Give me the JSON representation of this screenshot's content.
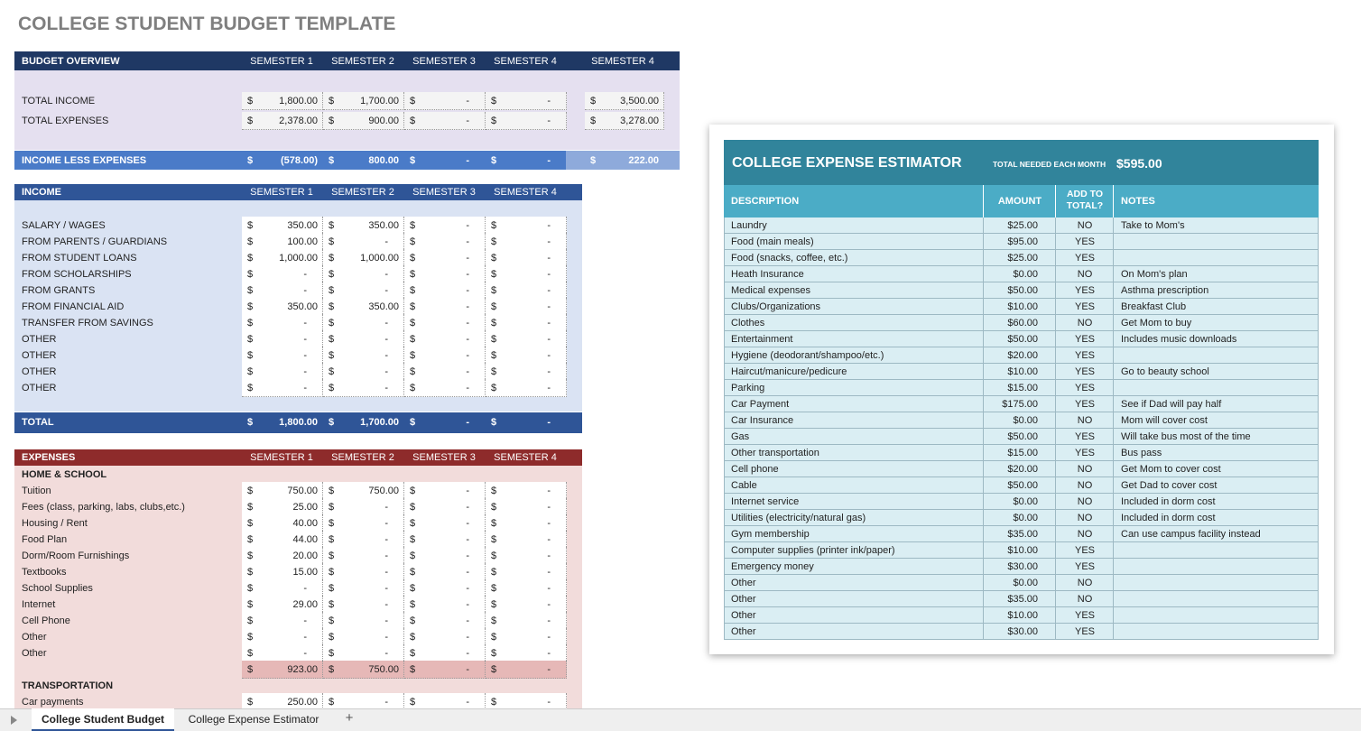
{
  "title": "COLLEGE STUDENT BUDGET TEMPLATE",
  "currency": "$",
  "overview": {
    "header": [
      "BUDGET OVERVIEW",
      "SEMESTER 1",
      "SEMESTER 2",
      "SEMESTER 3",
      "SEMESTER 4",
      "SEMESTER 4"
    ],
    "rows": [
      {
        "label": "TOTAL INCOME",
        "values": [
          "1,800.00",
          "1,700.00",
          "-",
          "-"
        ],
        "total": "3,500.00"
      },
      {
        "label": "TOTAL EXPENSES",
        "values": [
          "2,378.00",
          "900.00",
          "-",
          "-"
        ],
        "total": "3,278.00"
      }
    ],
    "net": {
      "label": "INCOME LESS EXPENSES",
      "values": [
        "(578.00)",
        "800.00",
        "-",
        "-"
      ],
      "total": "222.00"
    }
  },
  "income": {
    "header": [
      "INCOME",
      "SEMESTER 1",
      "SEMESTER 2",
      "SEMESTER 3",
      "SEMESTER 4"
    ],
    "rows": [
      {
        "label": "SALARY / WAGES",
        "values": [
          "350.00",
          "350.00",
          "-",
          "-"
        ]
      },
      {
        "label": "FROM PARENTS / GUARDIANS",
        "values": [
          "100.00",
          "-",
          "-",
          "-"
        ]
      },
      {
        "label": "FROM STUDENT LOANS",
        "values": [
          "1,000.00",
          "1,000.00",
          "-",
          "-"
        ]
      },
      {
        "label": "FROM SCHOLARSHIPS",
        "values": [
          "-",
          "-",
          "-",
          "-"
        ]
      },
      {
        "label": "FROM GRANTS",
        "values": [
          "-",
          "-",
          "-",
          "-"
        ]
      },
      {
        "label": "FROM FINANCIAL AID",
        "values": [
          "350.00",
          "350.00",
          "-",
          "-"
        ]
      },
      {
        "label": "TRANSFER FROM SAVINGS",
        "values": [
          "-",
          "-",
          "-",
          "-"
        ]
      },
      {
        "label": "OTHER",
        "values": [
          "-",
          "-",
          "-",
          "-"
        ]
      },
      {
        "label": "OTHER",
        "values": [
          "-",
          "-",
          "-",
          "-"
        ]
      },
      {
        "label": "OTHER",
        "values": [
          "-",
          "-",
          "-",
          "-"
        ]
      },
      {
        "label": "OTHER",
        "values": [
          "-",
          "-",
          "-",
          "-"
        ]
      }
    ],
    "total": {
      "label": "TOTAL",
      "values": [
        "1,800.00",
        "1,700.00",
        "-",
        "-"
      ]
    }
  },
  "expenses": {
    "header": [
      "EXPENSES",
      "SEMESTER 1",
      "SEMESTER 2",
      "SEMESTER 3",
      "SEMESTER 4"
    ],
    "sections": [
      {
        "title": "HOME & SCHOOL",
        "rows": [
          {
            "label": "Tuition",
            "values": [
              "750.00",
              "750.00",
              "-",
              "-"
            ]
          },
          {
            "label": "Fees (class, parking, labs, clubs,etc.)",
            "values": [
              "25.00",
              "-",
              "-",
              "-"
            ]
          },
          {
            "label": "Housing / Rent",
            "values": [
              "40.00",
              "-",
              "-",
              "-"
            ]
          },
          {
            "label": "Food Plan",
            "values": [
              "44.00",
              "-",
              "-",
              "-"
            ]
          },
          {
            "label": "Dorm/Room Furnishings",
            "values": [
              "20.00",
              "-",
              "-",
              "-"
            ]
          },
          {
            "label": "Textbooks",
            "values": [
              "15.00",
              "-",
              "-",
              "-"
            ]
          },
          {
            "label": "School Supplies",
            "values": [
              "-",
              "-",
              "-",
              "-"
            ]
          },
          {
            "label": "Internet",
            "values": [
              "29.00",
              "-",
              "-",
              "-"
            ]
          },
          {
            "label": "Cell Phone",
            "values": [
              "-",
              "-",
              "-",
              "-"
            ]
          },
          {
            "label": "Other",
            "values": [
              "-",
              "-",
              "-",
              "-"
            ]
          },
          {
            "label": "Other",
            "values": [
              "-",
              "-",
              "-",
              "-"
            ]
          }
        ],
        "subtotal": [
          "923.00",
          "750.00",
          "-",
          "-"
        ]
      },
      {
        "title": "TRANSPORTATION",
        "rows": [
          {
            "label": "Car payments",
            "values": [
              "250.00",
              "-",
              "-",
              "-"
            ]
          }
        ]
      }
    ]
  },
  "estimator": {
    "title": "COLLEGE EXPENSE ESTIMATOR",
    "total_label": "TOTAL NEEDED EACH MONTH",
    "total": "$595.00",
    "columns": [
      "DESCRIPTION",
      "AMOUNT",
      "ADD TO TOTAL?",
      "NOTES"
    ],
    "rows": [
      {
        "description": "Laundry",
        "amount": "$25.00",
        "add": "NO",
        "notes": "Take to Mom's"
      },
      {
        "description": "Food (main meals)",
        "amount": "$95.00",
        "add": "YES"
      },
      {
        "description": "Food (snacks, coffee, etc.)",
        "amount": "$25.00",
        "add": "YES"
      },
      {
        "description": "Heath Insurance",
        "amount": "$0.00",
        "add": "NO",
        "notes": "On Mom's plan"
      },
      {
        "description": "Medical expenses",
        "amount": "$50.00",
        "add": "YES",
        "notes": "Asthma prescription"
      },
      {
        "description": "Clubs/Organizations",
        "amount": "$10.00",
        "add": "YES",
        "notes": "Breakfast Club"
      },
      {
        "description": "Clothes",
        "amount": "$60.00",
        "add": "NO",
        "notes": "Get Mom to buy"
      },
      {
        "description": "Entertainment",
        "amount": "$50.00",
        "add": "YES",
        "notes": "Includes music downloads"
      },
      {
        "description": "Hygiene (deodorant/shampoo/etc.)",
        "amount": "$20.00",
        "add": "YES"
      },
      {
        "description": "Haircut/manicure/pedicure",
        "amount": "$10.00",
        "add": "YES",
        "notes": "Go to beauty school"
      },
      {
        "description": "Parking",
        "amount": "$15.00",
        "add": "YES"
      },
      {
        "description": "Car Payment",
        "amount": "$175.00",
        "add": "YES",
        "notes": "See if Dad will pay half"
      },
      {
        "description": "Car Insurance",
        "amount": "$0.00",
        "add": "NO",
        "notes": "Mom will cover cost"
      },
      {
        "description": "Gas",
        "amount": "$50.00",
        "add": "YES",
        "notes": "Will take bus most of the time"
      },
      {
        "description": "Other transportation",
        "amount": "$15.00",
        "add": "YES",
        "notes": "Bus pass"
      },
      {
        "description": "Cell phone",
        "amount": "$20.00",
        "add": "NO",
        "notes": "Get Mom to cover cost"
      },
      {
        "description": "Cable",
        "amount": "$50.00",
        "add": "NO",
        "notes": "Get Dad to cover cost"
      },
      {
        "description": "Internet service",
        "amount": "$0.00",
        "add": "NO",
        "notes": "Included in dorm cost"
      },
      {
        "description": "Utilities (electricity/natural gas)",
        "amount": "$0.00",
        "add": "NO",
        "notes": "Included in dorm cost"
      },
      {
        "description": "Gym membership",
        "amount": "$35.00",
        "add": "NO",
        "notes": "Can use campus facility instead"
      },
      {
        "description": "Computer supplies (printer ink/paper)",
        "amount": "$10.00",
        "add": "YES"
      },
      {
        "description": "Emergency money",
        "amount": "$30.00",
        "add": "YES"
      },
      {
        "description": "Other",
        "amount": "$0.00",
        "add": "NO"
      },
      {
        "description": "Other",
        "amount": "$35.00",
        "add": "NO"
      },
      {
        "description": "Other",
        "amount": "$10.00",
        "add": "YES"
      },
      {
        "description": "Other",
        "amount": "$30.00",
        "add": "YES"
      }
    ]
  },
  "tabs": [
    "College Student Budget",
    "College Expense Estimator",
    "+"
  ]
}
